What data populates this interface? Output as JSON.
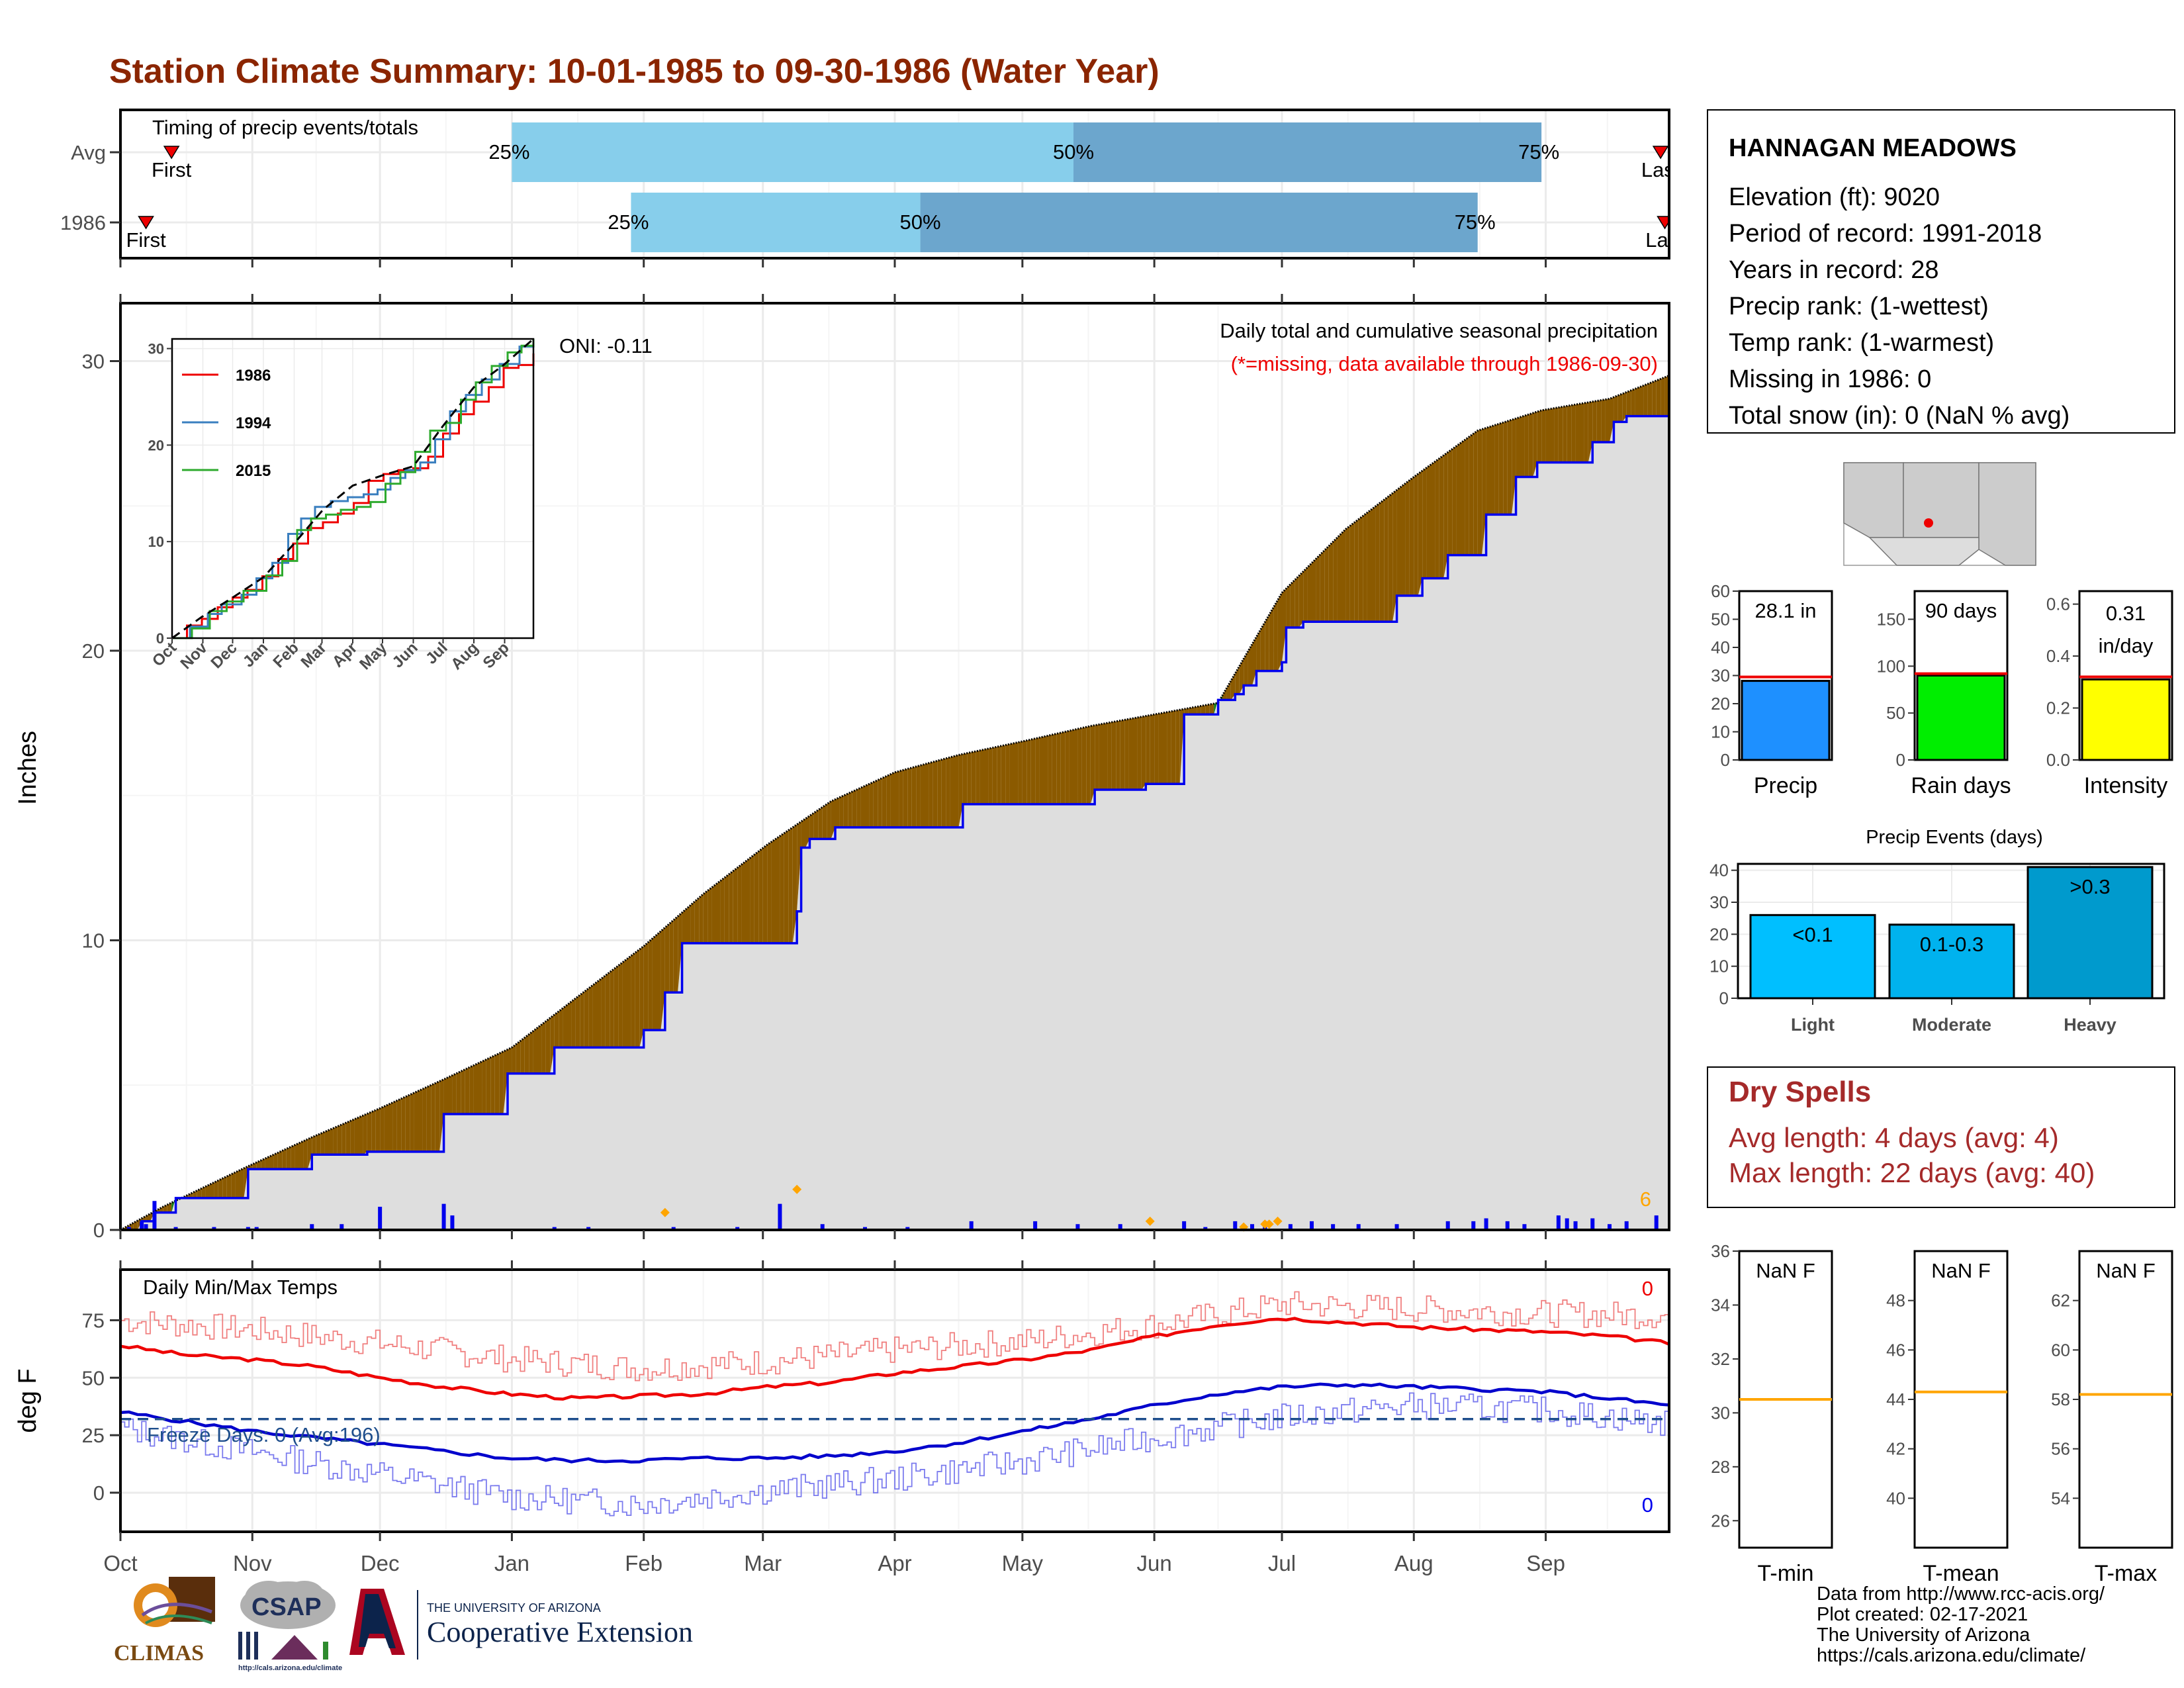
{
  "title": "Station Climate Summary: 10-01-1985 to 09-30-1986 (Water Year)",
  "colors": {
    "title": "#8B2500",
    "light_blue": "#87CEEB",
    "mid_blue": "#6CA6CD",
    "below_avg_fill": "#1B7F1B",
    "above_avg_fill": "#8B5A00",
    "grey_fill": "#DEDEDE",
    "red": "#EE0000",
    "blue": "#0000EE",
    "orange": "#FFA500",
    "dry_spell": "#A52A2A",
    "rank_blue": "#1E90FF",
    "rank_green": "#00EE00",
    "rank_yellow": "#FFFF00",
    "event_light": "#00BFFF",
    "event_mod": "#00B2EE",
    "event_heavy": "#009ACD"
  },
  "timing": {
    "title": "Timing of precip events/totals",
    "rows": [
      {
        "label": "Avg",
        "first": "First",
        "last": "Last",
        "first_day": 12,
        "last_day": 362,
        "q25_day": 92,
        "q50_day": 224,
        "q75_day": 334
      },
      {
        "label": "1986",
        "first": "First",
        "last": "Last",
        "first_day": 6,
        "last_day": 363,
        "q25_day": 120,
        "q50_day": 188,
        "q75_day": 319
      }
    ],
    "labels": {
      "q25": "25%",
      "q50": "50%",
      "q75": "75%"
    }
  },
  "precip": {
    "ylabel": "Inches",
    "ylim": [
      0,
      32
    ],
    "yticks": [
      0,
      10,
      20,
      30
    ],
    "text1": "Daily total and cumulative seasonal precipitation",
    "text2": "(*=missing, data available through 1986-09-30)",
    "oni": "ONI: -0.11",
    "corner_count": "6",
    "avg_cumulative": {
      "day": [
        0,
        10,
        30,
        45,
        61,
        76,
        92,
        107,
        123,
        137,
        152,
        167,
        182,
        197,
        213,
        228,
        243,
        258,
        273,
        288,
        304,
        319,
        334,
        350,
        364
      ],
      "inches": [
        0,
        0.8,
        2.2,
        3.2,
        4.2,
        5.2,
        6.3,
        8.0,
        9.8,
        11.6,
        13.3,
        14.8,
        15.8,
        16.4,
        16.9,
        17.4,
        17.8,
        18.2,
        22.0,
        24.2,
        26.0,
        27.6,
        28.3,
        28.7,
        29.5
      ]
    },
    "obs_cumulative": {
      "day": [
        0,
        5,
        8,
        13,
        30,
        45,
        58,
        76,
        91,
        102,
        122,
        123,
        128,
        132,
        159,
        160,
        162,
        168,
        182,
        198,
        229,
        241,
        250,
        252,
        258,
        262,
        264,
        267,
        273,
        274,
        278,
        285,
        300,
        306,
        312,
        321,
        328,
        333,
        346,
        351,
        354,
        364
      ],
      "inches": [
        0,
        0.3,
        0.6,
        1.1,
        2.1,
        2.6,
        2.7,
        4.0,
        5.4,
        6.3,
        6.3,
        6.9,
        8.2,
        9.9,
        11.0,
        13.2,
        13.5,
        13.9,
        13.9,
        14.7,
        15.2,
        15.4,
        17.8,
        17.8,
        18.3,
        18.5,
        18.8,
        19.3,
        19.6,
        20.8,
        21.0,
        21.0,
        21.9,
        22.5,
        23.3,
        24.7,
        26.0,
        26.5,
        27.2,
        27.9,
        28.1,
        28.1
      ]
    },
    "daily_bars": {
      "day": [
        2,
        5,
        6,
        8,
        13,
        22,
        30,
        32,
        45,
        52,
        61,
        76,
        78,
        102,
        110,
        130,
        145,
        155,
        165,
        175,
        185,
        200,
        215,
        225,
        235,
        250,
        255,
        262,
        266,
        269,
        275,
        280,
        285,
        291,
        300,
        312,
        318,
        321,
        326,
        330,
        338,
        340,
        342,
        346,
        350,
        354,
        361
      ],
      "inches": [
        0.1,
        0.3,
        0.2,
        1.0,
        0.1,
        0.1,
        0.1,
        0.1,
        0.2,
        0.2,
        0.8,
        0.9,
        0.5,
        0.1,
        0.1,
        0.1,
        0.1,
        0.9,
        0.2,
        0.1,
        0.1,
        0.3,
        0.3,
        0.2,
        0.2,
        0.3,
        0.1,
        0.3,
        0.2,
        0.3,
        0.2,
        0.3,
        0.2,
        0.2,
        0.2,
        0.3,
        0.3,
        0.4,
        0.3,
        0.2,
        0.5,
        0.4,
        0.3,
        0.4,
        0.2,
        0.3,
        0.5
      ]
    },
    "markers": {
      "day": [
        128,
        159,
        242,
        264,
        269,
        270,
        272
      ],
      "inches": [
        0.6,
        1.4,
        0.3,
        0.1,
        0.2,
        0.2,
        0.3
      ]
    }
  },
  "inset": {
    "xticks": [
      "Oct",
      "Nov",
      "Dec",
      "Jan",
      "Feb",
      "Mar",
      "Apr",
      "May",
      "Jun",
      "Jul",
      "Aug",
      "Sep"
    ],
    "yticks": [
      0,
      10,
      20,
      30
    ],
    "ylim": [
      0,
      31
    ],
    "legend": [
      "1986",
      "1994",
      "2015"
    ],
    "series": [
      {
        "name": "1986",
        "color": "#EE0000",
        "day": [
          0,
          15,
          30,
          46,
          61,
          76,
          91,
          107,
          122,
          137,
          152,
          167,
          183,
          198,
          213,
          228,
          243,
          258,
          273,
          289,
          304,
          319,
          334,
          349,
          364
        ],
        "inches": [
          0,
          1.3,
          2.0,
          3.2,
          4.2,
          5.0,
          6.4,
          8.2,
          9.8,
          11.4,
          12.0,
          12.9,
          14.0,
          16.3,
          17.0,
          17.4,
          17.6,
          18.8,
          21.2,
          23.2,
          24.5,
          26.0,
          28.0,
          28.3,
          29.5
        ]
      },
      {
        "name": "1994",
        "color": "#3A7FBF",
        "day": [
          0,
          18,
          36,
          50,
          70,
          85,
          101,
          117,
          130,
          144,
          160,
          177,
          193,
          207,
          220,
          235,
          250,
          265,
          280,
          296,
          312,
          330,
          350,
          364
        ],
        "inches": [
          0,
          1.2,
          2.5,
          3.5,
          4.5,
          6.2,
          7.8,
          10.8,
          12.4,
          13.6,
          14.2,
          14.6,
          14.9,
          15.4,
          16.6,
          17.4,
          18.2,
          20.6,
          23.5,
          25.2,
          26.8,
          28.4,
          30.2,
          31.0
        ]
      },
      {
        "name": "2015",
        "color": "#2EAA2E",
        "day": [
          0,
          20,
          38,
          55,
          72,
          95,
          111,
          126,
          140,
          155,
          170,
          186,
          200,
          215,
          230,
          245,
          260,
          276,
          291,
          306,
          322,
          338,
          352,
          364
        ],
        "inches": [
          0,
          1.0,
          2.8,
          3.8,
          4.9,
          6.5,
          8.0,
          11.2,
          12.4,
          12.8,
          13.3,
          13.6,
          14.1,
          16.0,
          17.2,
          19.3,
          21.5,
          22.3,
          24.7,
          26.5,
          28.2,
          29.6,
          30.3,
          31.0
        ]
      },
      {
        "name": "avg",
        "color": "#000000",
        "day": [
          0,
          30,
          61,
          92,
          123,
          152,
          182,
          213,
          243,
          273,
          304,
          334,
          364
        ],
        "inches": [
          0,
          2.2,
          4.2,
          6.3,
          9.8,
          13.3,
          15.8,
          16.9,
          17.8,
          22.0,
          26.0,
          28.3,
          31.0
        ]
      }
    ]
  },
  "temps": {
    "ylabel": "deg F",
    "title": "Daily Min/Max Temps",
    "freeze": "Freeze Days: 0 (Avg:196)",
    "count_top": "0",
    "count_bottom": "0",
    "yticks": [
      0,
      25,
      50,
      75
    ],
    "ylim": [
      -17,
      97
    ],
    "freeze_line": 32,
    "avg_max": {
      "day": [
        0,
        15,
        30,
        45,
        61,
        76,
        91,
        107,
        122,
        137,
        152,
        167,
        182,
        198,
        213,
        228,
        243,
        258,
        273,
        289,
        304,
        319,
        334,
        350,
        364
      ],
      "deg": [
        64,
        60,
        58,
        55,
        50,
        46,
        43,
        41,
        42,
        43,
        46,
        48,
        52,
        55,
        58,
        62,
        68,
        73,
        76,
        74,
        72,
        71,
        70,
        68,
        65
      ]
    },
    "avg_min": {
      "day": [
        0,
        15,
        30,
        45,
        61,
        76,
        91,
        107,
        122,
        137,
        152,
        167,
        182,
        198,
        213,
        228,
        243,
        258,
        273,
        289,
        304,
        319,
        334,
        350,
        364
      ],
      "deg": [
        35,
        31,
        27,
        24,
        21,
        18,
        15,
        14,
        14,
        15,
        15,
        16,
        18,
        22,
        27,
        32,
        38,
        43,
        46,
        47,
        46,
        45,
        44,
        41,
        38
      ]
    },
    "obs_max_base": {
      "day": [
        0,
        30,
        61,
        92,
        122,
        152,
        182,
        213,
        243,
        273,
        304,
        334,
        364
      ],
      "deg": [
        75,
        71,
        65,
        58,
        54,
        57,
        62,
        66,
        73,
        82,
        80,
        78,
        77
      ]
    },
    "obs_min_base": {
      "day": [
        0,
        30,
        61,
        92,
        122,
        152,
        182,
        213,
        243,
        273,
        304,
        334,
        364
      ],
      "deg": [
        28,
        18,
        8,
        -2,
        -5,
        1,
        6,
        14,
        24,
        33,
        38,
        36,
        30
      ]
    },
    "xticks": [
      "Oct",
      "Nov",
      "Dec",
      "Jan",
      "Feb",
      "Mar",
      "Apr",
      "May",
      "Jun",
      "Jul",
      "Aug",
      "Sep"
    ]
  },
  "station": {
    "name": "HANNAGAN MEADOWS",
    "lines": [
      "Elevation (ft): 9020",
      "Period of record: 1991-2018",
      "Years in record: 28",
      "Precip rank:  (1-wettest)",
      "Temp rank:  (1-warmest)",
      "Missing in 1986: 0",
      "Total snow (in): 0 (NaN % avg)"
    ]
  },
  "ranks": [
    {
      "label": "Precip",
      "value_text": "28.1 in",
      "value": 28.1,
      "avg": 29.5,
      "ylim": [
        0,
        60
      ],
      "yticks": [
        0,
        10,
        20,
        30,
        40,
        50,
        60
      ],
      "tick_fmt": 0,
      "color": "#1E90FF"
    },
    {
      "label": "Rain days",
      "value_text": "90 days",
      "value": 90,
      "avg": 92,
      "ylim": [
        0,
        180
      ],
      "yticks": [
        0,
        50,
        100,
        150
      ],
      "tick_fmt": 0,
      "color": "#00EE00"
    },
    {
      "label": "Intensity",
      "value_text": "0.31 in/day",
      "value_text_a": "0.31",
      "value_text_b": "in/day",
      "value": 0.31,
      "avg": 0.32,
      "ylim": [
        0,
        0.65
      ],
      "yticks": [
        0,
        0.2,
        0.4,
        0.6
      ],
      "tick_fmt": 1,
      "color": "#FFFF00"
    }
  ],
  "events": {
    "title": "Precip Events (days)",
    "ylim": [
      0,
      42
    ],
    "yticks": [
      0,
      10,
      20,
      30,
      40
    ],
    "bars": [
      {
        "cat": "Light",
        "label": "<0.1",
        "value": 26,
        "color": "#00BFFF"
      },
      {
        "cat": "Moderate",
        "label": "0.1-0.3",
        "value": 23,
        "color": "#00B2EE"
      },
      {
        "cat": "Heavy",
        "label": ">0.3",
        "value": 41,
        "color": "#009ACD"
      }
    ]
  },
  "dry_spells": {
    "title": "Dry Spells",
    "avg_line": "Avg length: 4 days (avg: 4)",
    "max_line": "Max length: 22 days (avg: 40)"
  },
  "temp_boxes": [
    {
      "label": "T-min",
      "value_text": "NaN F",
      "avg": 30.5,
      "ylim": [
        25,
        36
      ],
      "yticks": [
        26,
        28,
        30,
        32,
        34,
        36
      ]
    },
    {
      "label": "T-mean",
      "value_text": "NaN F",
      "avg": 44.3,
      "ylim": [
        38,
        50
      ],
      "yticks": [
        40,
        42,
        44,
        46,
        48
      ]
    },
    {
      "label": "T-max",
      "value_text": "NaN F",
      "avg": 58.2,
      "ylim": [
        52,
        64
      ],
      "yticks": [
        54,
        56,
        58,
        60,
        62
      ]
    }
  ],
  "footer": {
    "lines": [
      "Data from http://www.rcc-acis.org/",
      "Plot created: 02-17-2021",
      "The University of Arizona",
      "https://cals.arizona.edu/climate/"
    ]
  },
  "logos": {
    "climas": "CLIMAS",
    "csap": "CSAP",
    "csap_url": "http://cals.arizona.edu/climate",
    "ua_small": "THE UNIVERSITY OF ARIZONA",
    "ua_big": "Cooperative Extension"
  }
}
